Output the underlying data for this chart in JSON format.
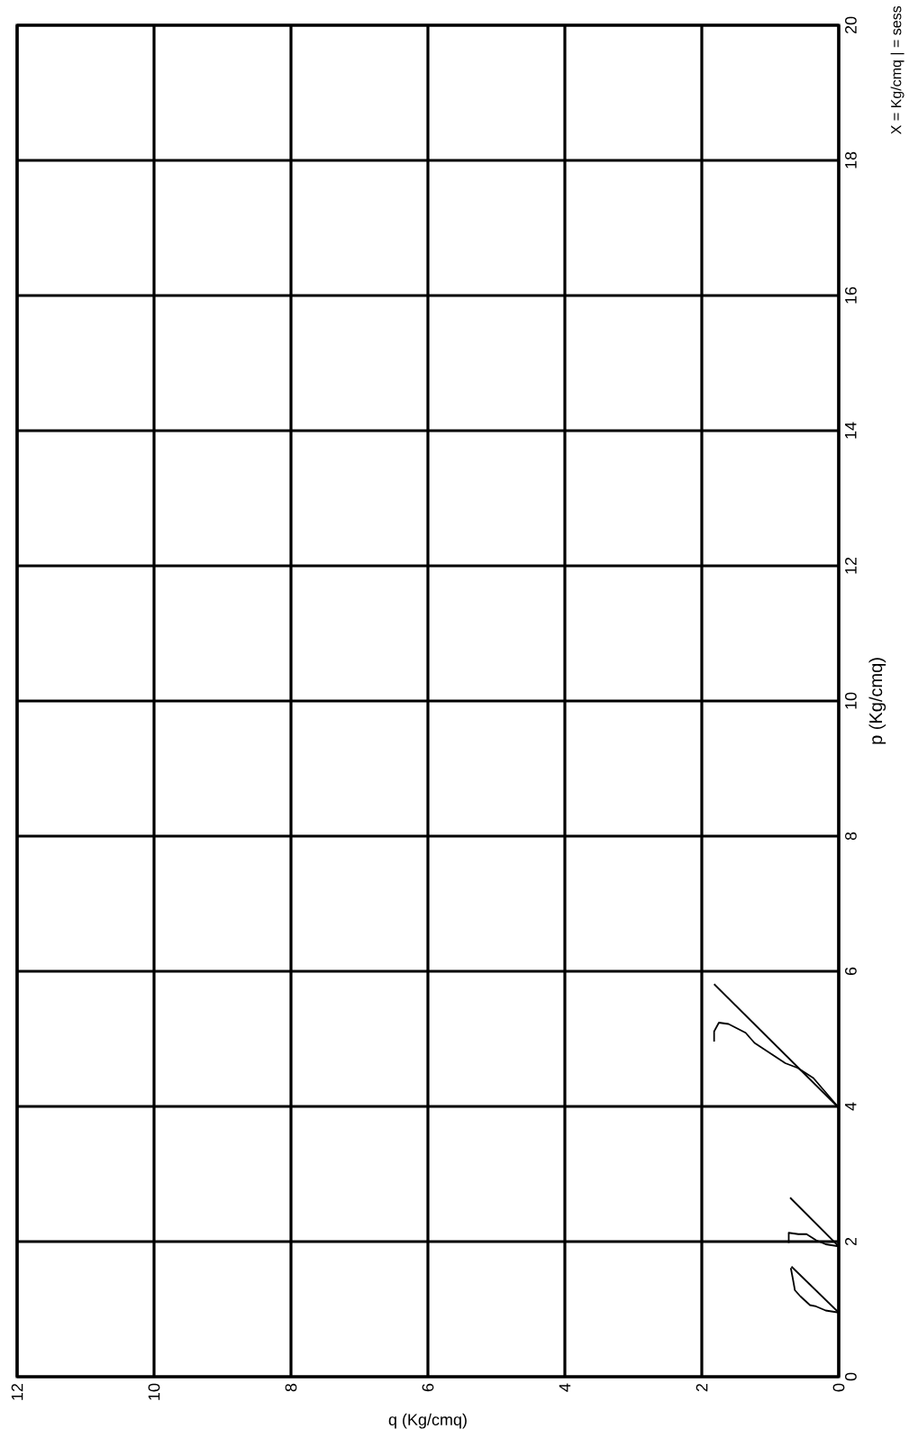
{
  "chart_data": {
    "type": "line",
    "xlabel": "q (Kg/cmq)",
    "ylabel": "p (Kg/cmq)",
    "annotations": [
      "X = Kg/cmq | = sess"
    ],
    "xlim": [
      12,
      0
    ],
    "ylim": [
      0,
      20
    ],
    "xticks": [
      0,
      2,
      4,
      6,
      8,
      10,
      12
    ],
    "yticks": [
      0,
      2,
      4,
      6,
      8,
      10,
      12,
      14,
      16,
      18,
      20
    ],
    "grid": true,
    "marker": "none",
    "line_style": "solid",
    "series": [
      {
        "color": "#000000",
        "x": [
          0,
          0.69
        ],
        "values": [
          0.95,
          1.63
        ]
      },
      {
        "color": "#000000",
        "x": [
          0,
          0.19,
          0.33,
          0.42,
          0.56,
          0.64,
          0.67,
          0.7
        ],
        "values": [
          0.95,
          0.98,
          1.04,
          1.06,
          1.19,
          1.28,
          1.45,
          1.61
        ]
      },
      {
        "color": "#000000",
        "x": [
          0,
          0.71
        ],
        "values": [
          1.93,
          2.65
        ]
      },
      {
        "color": "#000000",
        "x": [
          0,
          0.19,
          0.33,
          0.47,
          0.59,
          0.73,
          0.73
        ],
        "values": [
          1.93,
          1.96,
          2.02,
          2.11,
          2.11,
          2.13,
          1.98
        ]
      },
      {
        "color": "#000000",
        "x": [
          0,
          1.82
        ],
        "values": [
          3.98,
          5.81
        ]
      },
      {
        "color": "#000000",
        "x": [
          0,
          0.15,
          0.37,
          0.6,
          0.78,
          1.23,
          1.36,
          1.61,
          1.75,
          1.82,
          1.82
        ],
        "values": [
          3.98,
          4.16,
          4.42,
          4.57,
          4.64,
          4.94,
          5.09,
          5.22,
          5.24,
          5.11,
          4.96
        ]
      }
    ]
  }
}
